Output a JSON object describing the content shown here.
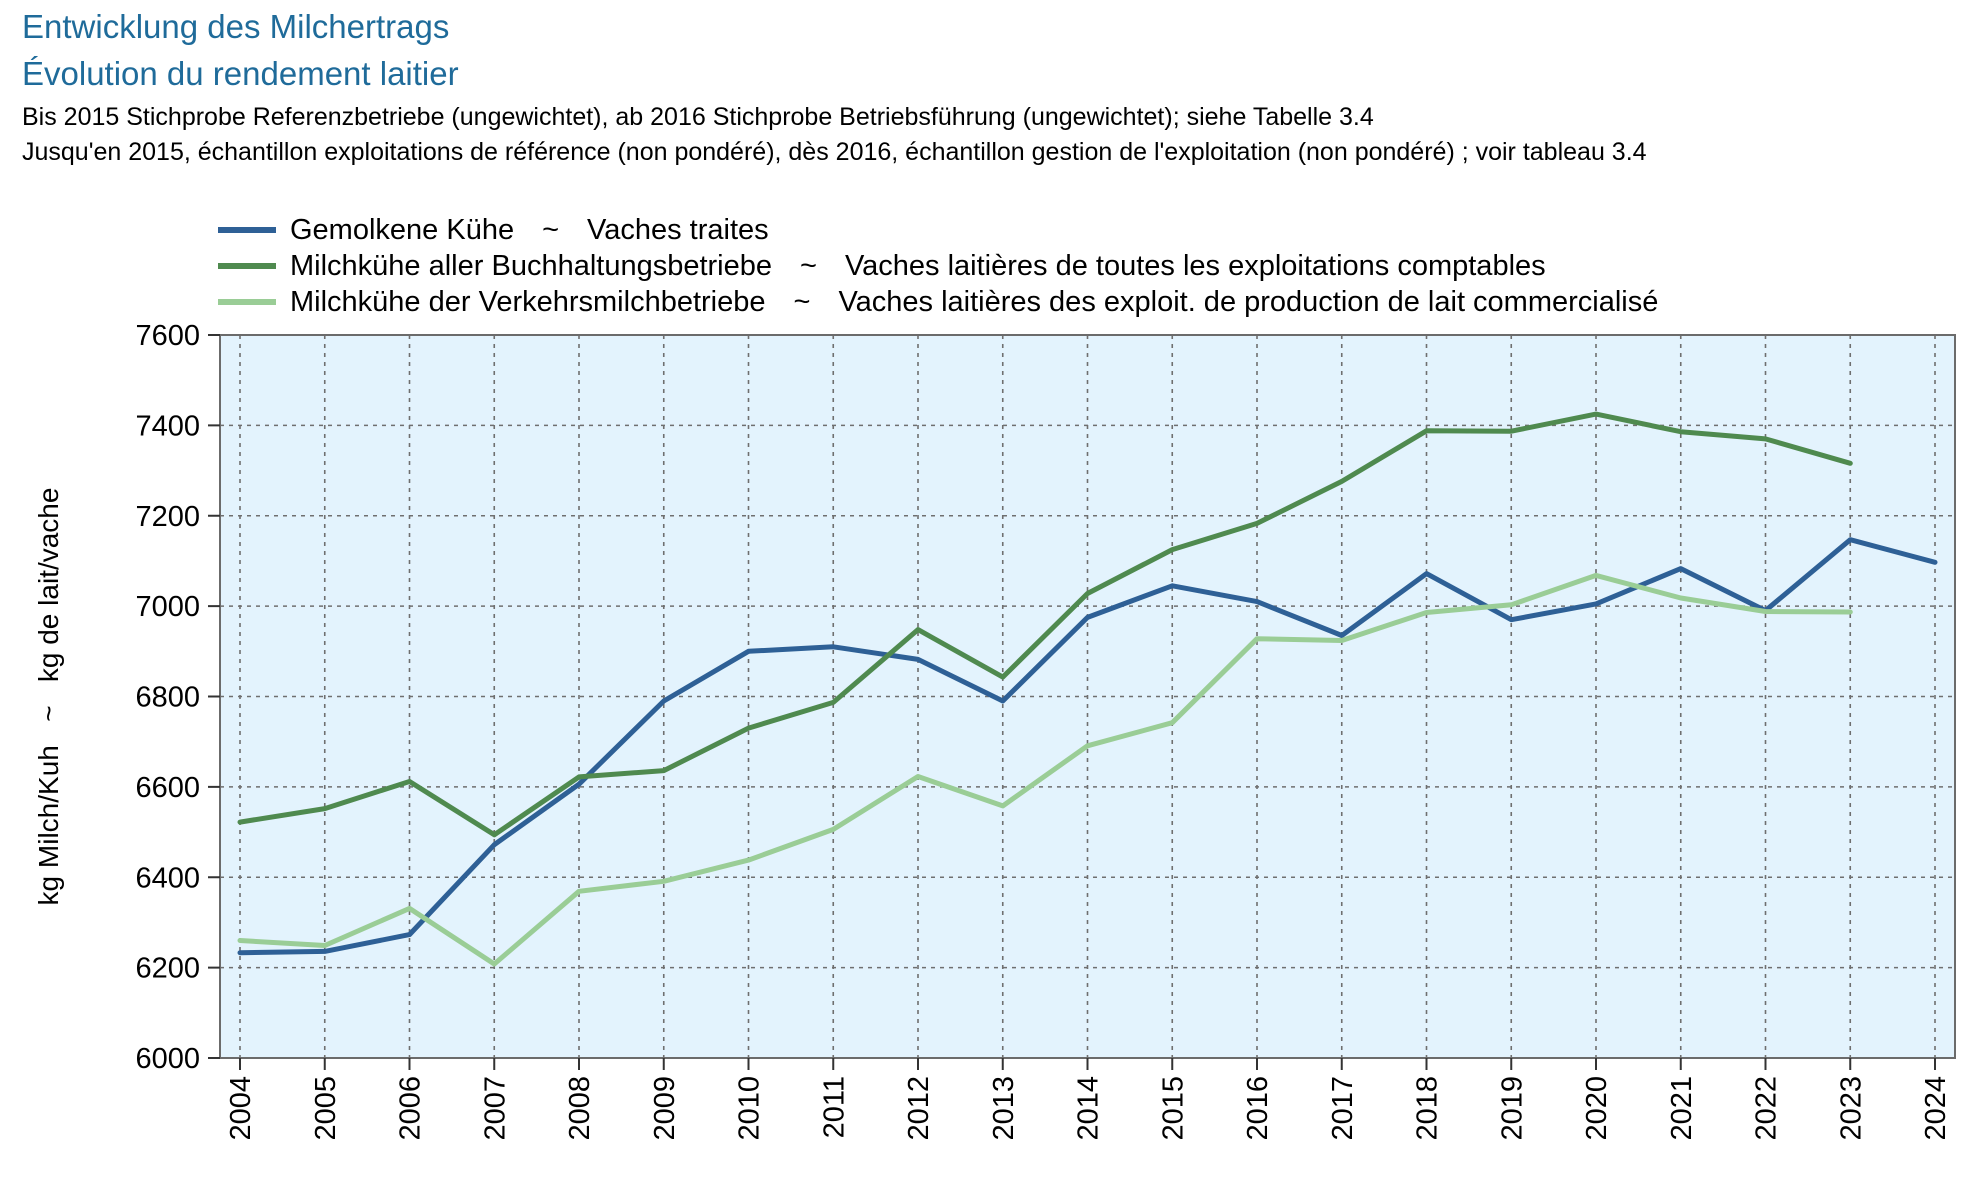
{
  "header": {
    "title_de": "Entwicklung des Milchertrags",
    "title_fr": "Évolution du rendement laitier",
    "subtitle_de": "Bis 2015 Stichprobe Referenzbetriebe (ungewichtet), ab 2016 Stichprobe Betriebsführung (ungewichtet); siehe Tabelle 3.4",
    "subtitle_fr": "Jusqu'en 2015, échantillon exploitations de référence (non pondéré), dès 2016, échantillon gestion de l'exploitation (non pondéré) ; voir tableau 3.4"
  },
  "legend": {
    "separator": "~",
    "items": [
      {
        "label_de": "Gemolkene Kühe",
        "label_fr": "Vaches traites",
        "color": "#2e6096"
      },
      {
        "label_de": "Milchkühe aller Buchhaltungsbetriebe",
        "label_fr": "Vaches laitières de toutes les exploitations comptables",
        "color": "#4f8a4f"
      },
      {
        "label_de": "Milchkühe der Verkehrsmilchbetriebe",
        "label_fr": "Vaches laitières des exploit. de production de lait commercialisé",
        "color": "#9acd96"
      }
    ]
  },
  "chart_data": {
    "type": "line",
    "ylabel": "kg Milch/Kuh   ~   kg de lait/vache",
    "ylim": [
      6000,
      7600
    ],
    "yticks": [
      6000,
      6200,
      6400,
      6600,
      6800,
      7000,
      7200,
      7400,
      7600
    ],
    "grid": true,
    "legend_position": "top",
    "plot_background": "#e3f3fd",
    "x": [
      "2004",
      "2005",
      "2006",
      "2007",
      "2008",
      "2009",
      "2010",
      "2011",
      "2012",
      "2013",
      "2014",
      "2015",
      "2016",
      "2017",
      "2018",
      "2019",
      "2020",
      "2021",
      "2022",
      "2023",
      "2024"
    ],
    "series": [
      {
        "name": "Gemolkene Kühe ~ Vaches traites",
        "color": "#2e6096",
        "values": [
          6233,
          6236,
          6273,
          6472,
          6606,
          6790,
          6900,
          6910,
          6882,
          6790,
          6975,
          7045,
          7010,
          6935,
          7072,
          6970,
          7005,
          7083,
          6990,
          7147,
          7097
        ]
      },
      {
        "name": "Milchkühe aller Buchhaltungsbetriebe ~ Vaches laitières de toutes les exploitations comptables",
        "color": "#4f8a4f",
        "values": [
          6522,
          6552,
          6612,
          6494,
          6622,
          6636,
          6730,
          6787,
          6948,
          6843,
          7028,
          7125,
          7183,
          7276,
          7388,
          7387,
          7425,
          7386,
          7370,
          7316,
          null
        ]
      },
      {
        "name": "Milchkühe der Verkehrsmilchbetriebe ~ Vaches laitières des exploit. de production de lait commercialisé",
        "color": "#9acd96",
        "values": [
          6260,
          6249,
          6331,
          6208,
          6369,
          6391,
          6438,
          6506,
          6623,
          6558,
          6691,
          6742,
          6928,
          6924,
          6986,
          7003,
          7068,
          7018,
          6988,
          6987,
          null
        ]
      }
    ]
  }
}
